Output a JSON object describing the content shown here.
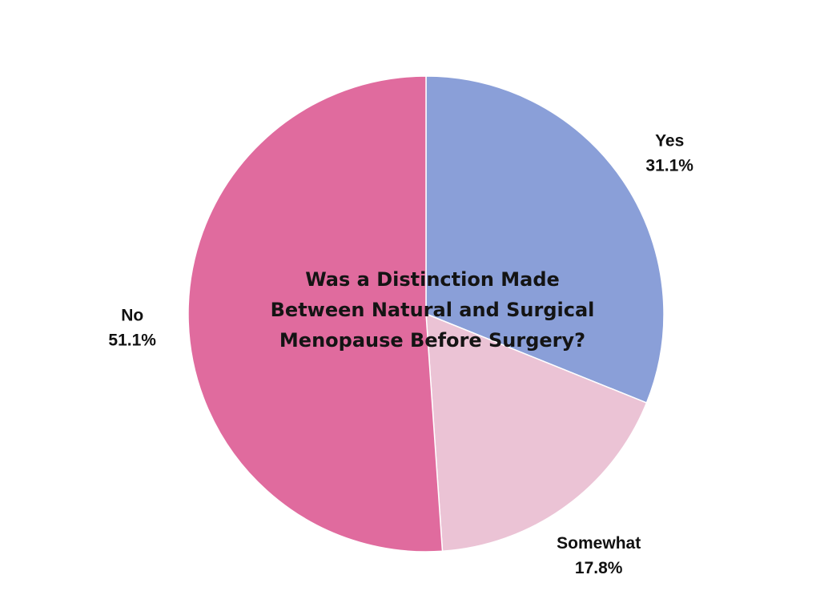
{
  "chart_data": {
    "type": "pie",
    "title": "Was a Distinction Made Between Natural and Surgical Menopause Before Surgery?",
    "title_lines": [
      "Was a Distinction Made",
      "Between Natural and Surgical",
      "Menopause Before Surgery?"
    ],
    "slices": [
      {
        "label": "Yes",
        "value": 31.1,
        "value_label": "31.1%",
        "color": "#8a9fd8"
      },
      {
        "label": "Somewhat",
        "value": 17.8,
        "value_label": "17.8%",
        "color": "#ebc3d5"
      },
      {
        "label": "No",
        "value": 51.1,
        "value_label": "51.1%",
        "color": "#e06b9e"
      }
    ],
    "start_angle": "12 o'clock",
    "direction": "clockwise",
    "legend": "none"
  }
}
